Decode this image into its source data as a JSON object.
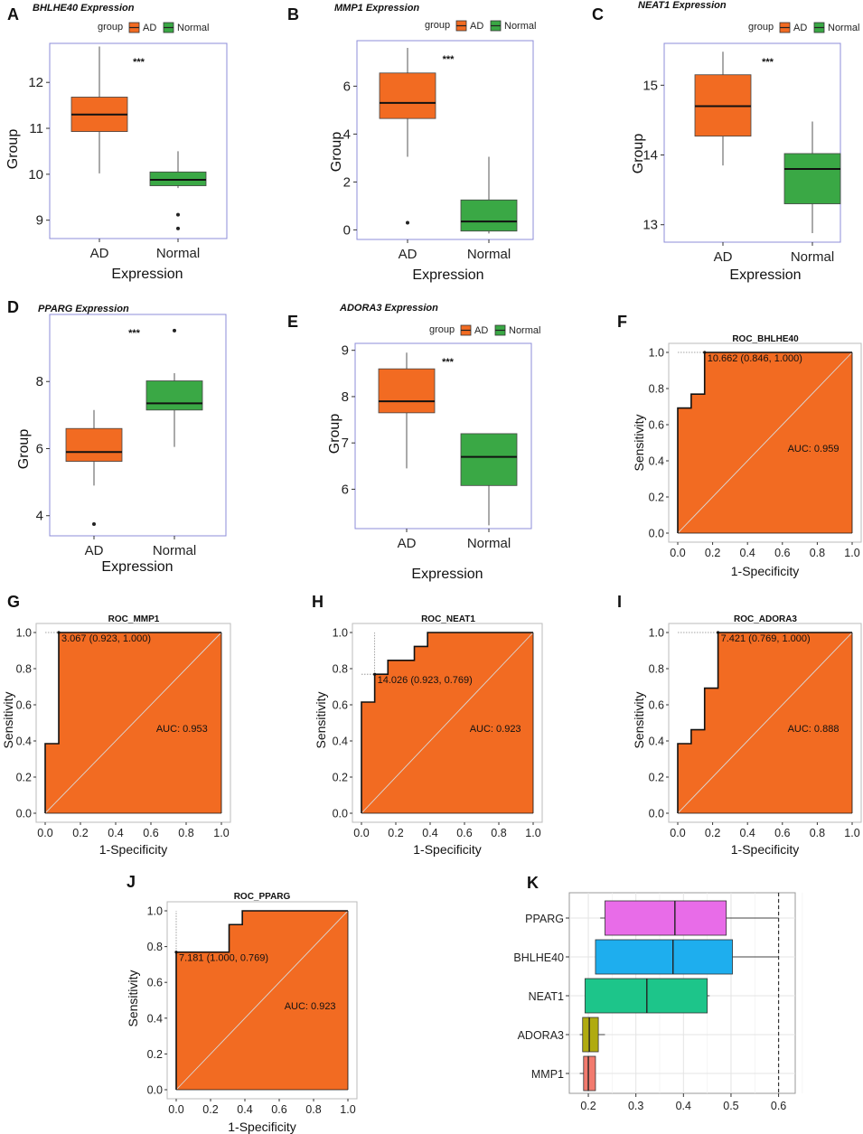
{
  "legend": {
    "title": "group",
    "labels": [
      "AD",
      "Normal"
    ]
  },
  "colors": {
    "ad": "#f26b22",
    "normal": "#3aa845",
    "roc_fill": "#f26b22",
    "box_border": "#8c8cd8",
    "k_boxes": [
      "#e86ce8",
      "#1eaeee",
      "#1dc58a",
      "#b0ab10",
      "#f27a6e"
    ]
  },
  "chart_data": [
    {
      "panel": "A",
      "type": "boxplot",
      "title": "BHLHE40 Expression",
      "xlabel": "Expression",
      "ylabel": "Group",
      "categories": [
        "AD",
        "Normal"
      ],
      "ylim": [
        8.6,
        12.85
      ],
      "yticks": [
        9,
        10,
        11,
        12
      ],
      "significance": "***",
      "boxes": [
        {
          "group": "AD",
          "whisker_low": 10.02,
          "q1": 10.93,
          "median": 11.3,
          "q3": 11.68,
          "whisker_high": 12.78,
          "outliers": []
        },
        {
          "group": "Normal",
          "whisker_low": 9.7,
          "q1": 9.75,
          "median": 9.88,
          "q3": 10.05,
          "whisker_high": 10.5,
          "outliers": [
            9.12,
            8.82
          ]
        }
      ]
    },
    {
      "panel": "B",
      "type": "boxplot",
      "title": "MMP1 Expression",
      "xlabel": "Expression",
      "ylabel": "Group",
      "categories": [
        "AD",
        "Normal"
      ],
      "ylim": [
        -0.4,
        7.9
      ],
      "yticks": [
        0,
        2,
        4,
        6
      ],
      "significance": "***",
      "boxes": [
        {
          "group": "AD",
          "whisker_low": 3.05,
          "q1": 4.65,
          "median": 5.3,
          "q3": 6.55,
          "whisker_high": 7.6,
          "outliers": [
            0.3
          ]
        },
        {
          "group": "Normal",
          "whisker_low": -0.15,
          "q1": -0.05,
          "median": 0.35,
          "q3": 1.25,
          "whisker_high": 3.05,
          "outliers": []
        }
      ]
    },
    {
      "panel": "C",
      "type": "boxplot",
      "title": "NEAT1 Expression",
      "xlabel": "Expression",
      "ylabel": "Group",
      "categories": [
        "AD",
        "Normal"
      ],
      "ylim": [
        12.75,
        15.6
      ],
      "yticks": [
        13,
        14,
        15
      ],
      "significance": "***",
      "boxes": [
        {
          "group": "AD",
          "whisker_low": 13.85,
          "q1": 14.27,
          "median": 14.7,
          "q3": 15.15,
          "whisker_high": 15.48,
          "outliers": []
        },
        {
          "group": "Normal",
          "whisker_low": 12.88,
          "q1": 13.3,
          "median": 13.8,
          "q3": 14.02,
          "whisker_high": 14.48,
          "outliers": []
        }
      ]
    },
    {
      "panel": "D",
      "type": "boxplot",
      "title": "PPARG Expression",
      "xlabel": "Expression",
      "ylabel": "Group",
      "categories": [
        "AD",
        "Normal"
      ],
      "ylim": [
        3.4,
        10.0
      ],
      "yticks": [
        4,
        6,
        8
      ],
      "significance": "***",
      "boxes": [
        {
          "group": "AD",
          "whisker_low": 4.9,
          "q1": 5.62,
          "median": 5.9,
          "q3": 6.6,
          "whisker_high": 7.15,
          "outliers": [
            3.75
          ]
        },
        {
          "group": "Normal",
          "whisker_low": 6.05,
          "q1": 7.15,
          "median": 7.35,
          "q3": 8.02,
          "whisker_high": 8.25,
          "outliers": [
            9.52
          ]
        }
      ]
    },
    {
      "panel": "E",
      "type": "boxplot",
      "title": "ADORA3 Expression",
      "xlabel": "Expression",
      "ylabel": "Group",
      "categories": [
        "AD",
        "Normal"
      ],
      "ylim": [
        5.15,
        9.15
      ],
      "yticks": [
        6,
        7,
        8,
        9
      ],
      "significance": "***",
      "boxes": [
        {
          "group": "AD",
          "whisker_low": 6.45,
          "q1": 7.65,
          "median": 7.9,
          "q3": 8.6,
          "whisker_high": 8.95,
          "outliers": []
        },
        {
          "group": "Normal",
          "whisker_low": 5.22,
          "q1": 6.08,
          "median": 6.7,
          "q3": 7.2,
          "whisker_high": 7.2,
          "outliers": []
        }
      ]
    },
    {
      "panel": "F",
      "type": "roc",
      "title": "ROC_BHLHE40",
      "xlabel": "1-Specificity",
      "ylabel": "Sensitivity",
      "ticks": [
        "0.0",
        "0.2",
        "0.4",
        "0.6",
        "0.8",
        "1.0"
      ],
      "auc_label": "AUC: 0.959",
      "threshold_label": "10.662 (0.846, 1.000)",
      "threshold_point": [
        0.154,
        1.0
      ],
      "curve": [
        [
          0,
          0
        ],
        [
          0,
          0.692
        ],
        [
          0.077,
          0.692
        ],
        [
          0.077,
          0.769
        ],
        [
          0.154,
          0.769
        ],
        [
          0.154,
          1.0
        ],
        [
          1,
          1
        ]
      ]
    },
    {
      "panel": "G",
      "type": "roc",
      "title": "ROC_MMP1",
      "xlabel": "1-Specificity",
      "ylabel": "Sensitivity",
      "ticks": [
        "0.0",
        "0.2",
        "0.4",
        "0.6",
        "0.8",
        "1.0"
      ],
      "auc_label": "AUC: 0.953",
      "threshold_label": "3.067 (0.923, 1.000)",
      "threshold_point": [
        0.077,
        1.0
      ],
      "curve": [
        [
          0,
          0
        ],
        [
          0,
          0.385
        ],
        [
          0.077,
          0.385
        ],
        [
          0.077,
          1.0
        ],
        [
          1,
          1
        ]
      ]
    },
    {
      "panel": "H",
      "type": "roc",
      "title": "ROC_NEAT1",
      "xlabel": "1-Specificity",
      "ylabel": "Sensitivity",
      "ticks": [
        "0.0",
        "0.2",
        "0.4",
        "0.6",
        "0.8",
        "1.0"
      ],
      "auc_label": "AUC: 0.923",
      "threshold_label": "14.026 (0.923, 0.769)",
      "threshold_point": [
        0.077,
        0.769
      ],
      "curve": [
        [
          0,
          0
        ],
        [
          0,
          0.615
        ],
        [
          0.077,
          0.615
        ],
        [
          0.077,
          0.769
        ],
        [
          0.154,
          0.769
        ],
        [
          0.154,
          0.846
        ],
        [
          0.308,
          0.846
        ],
        [
          0.308,
          0.923
        ],
        [
          0.385,
          0.923
        ],
        [
          0.385,
          1.0
        ],
        [
          1,
          1
        ]
      ]
    },
    {
      "panel": "I",
      "type": "roc",
      "title": "ROC_ADORA3",
      "xlabel": "1-Specificity",
      "ylabel": "Sensitivity",
      "ticks": [
        "0.0",
        "0.2",
        "0.4",
        "0.6",
        "0.8",
        "1.0"
      ],
      "auc_label": "AUC: 0.888",
      "threshold_label": "7.421 (0.769, 1.000)",
      "threshold_point": [
        0.231,
        1.0
      ],
      "curve": [
        [
          0,
          0
        ],
        [
          0,
          0.385
        ],
        [
          0.077,
          0.385
        ],
        [
          0.077,
          0.462
        ],
        [
          0.154,
          0.462
        ],
        [
          0.154,
          0.692
        ],
        [
          0.231,
          0.692
        ],
        [
          0.231,
          1.0
        ],
        [
          1,
          1
        ]
      ]
    },
    {
      "panel": "J",
      "type": "roc",
      "title": "ROC_PPARG",
      "xlabel": "1-Specificity",
      "ylabel": "Sensitivity",
      "ticks": [
        "0.0",
        "0.2",
        "0.4",
        "0.6",
        "0.8",
        "1.0"
      ],
      "auc_label": "AUC: 0.923",
      "threshold_label": "7.181 (1.000, 0.769)",
      "threshold_point": [
        0.0,
        0.769
      ],
      "curve": [
        [
          0,
          0
        ],
        [
          0,
          0.769
        ],
        [
          0.308,
          0.769
        ],
        [
          0.308,
          0.923
        ],
        [
          0.385,
          0.923
        ],
        [
          0.385,
          1.0
        ],
        [
          1,
          1
        ]
      ]
    },
    {
      "panel": "K",
      "type": "horizontal-boxplot",
      "categories": [
        "PPARG",
        "BHLHE40",
        "NEAT1",
        "ADORA3",
        "MMP1"
      ],
      "xlim": [
        0.16,
        0.635
      ],
      "xticks": [
        0.2,
        0.3,
        0.4,
        0.5,
        0.6
      ],
      "xtick_labels": [
        "0.2",
        "0.3",
        "0.4",
        "0.5",
        "0.6"
      ],
      "reference_line": 0.6,
      "boxes": [
        {
          "category": "PPARG",
          "whisker_low": 0.225,
          "q1": 0.235,
          "median": 0.382,
          "q3": 0.49,
          "whisker_high": 0.6
        },
        {
          "category": "BHLHE40",
          "whisker_low": 0.215,
          "q1": 0.215,
          "median": 0.378,
          "q3": 0.503,
          "whisker_high": 0.6
        },
        {
          "category": "NEAT1",
          "whisker_low": 0.193,
          "q1": 0.193,
          "median": 0.323,
          "q3": 0.45,
          "whisker_high": 0.455
        },
        {
          "category": "ADORA3",
          "whisker_low": 0.182,
          "q1": 0.188,
          "median": 0.202,
          "q3": 0.221,
          "whisker_high": 0.235
        },
        {
          "category": "MMP1",
          "whisker_low": 0.182,
          "q1": 0.19,
          "median": 0.2,
          "q3": 0.215,
          "whisker_high": 0.215
        }
      ]
    }
  ]
}
